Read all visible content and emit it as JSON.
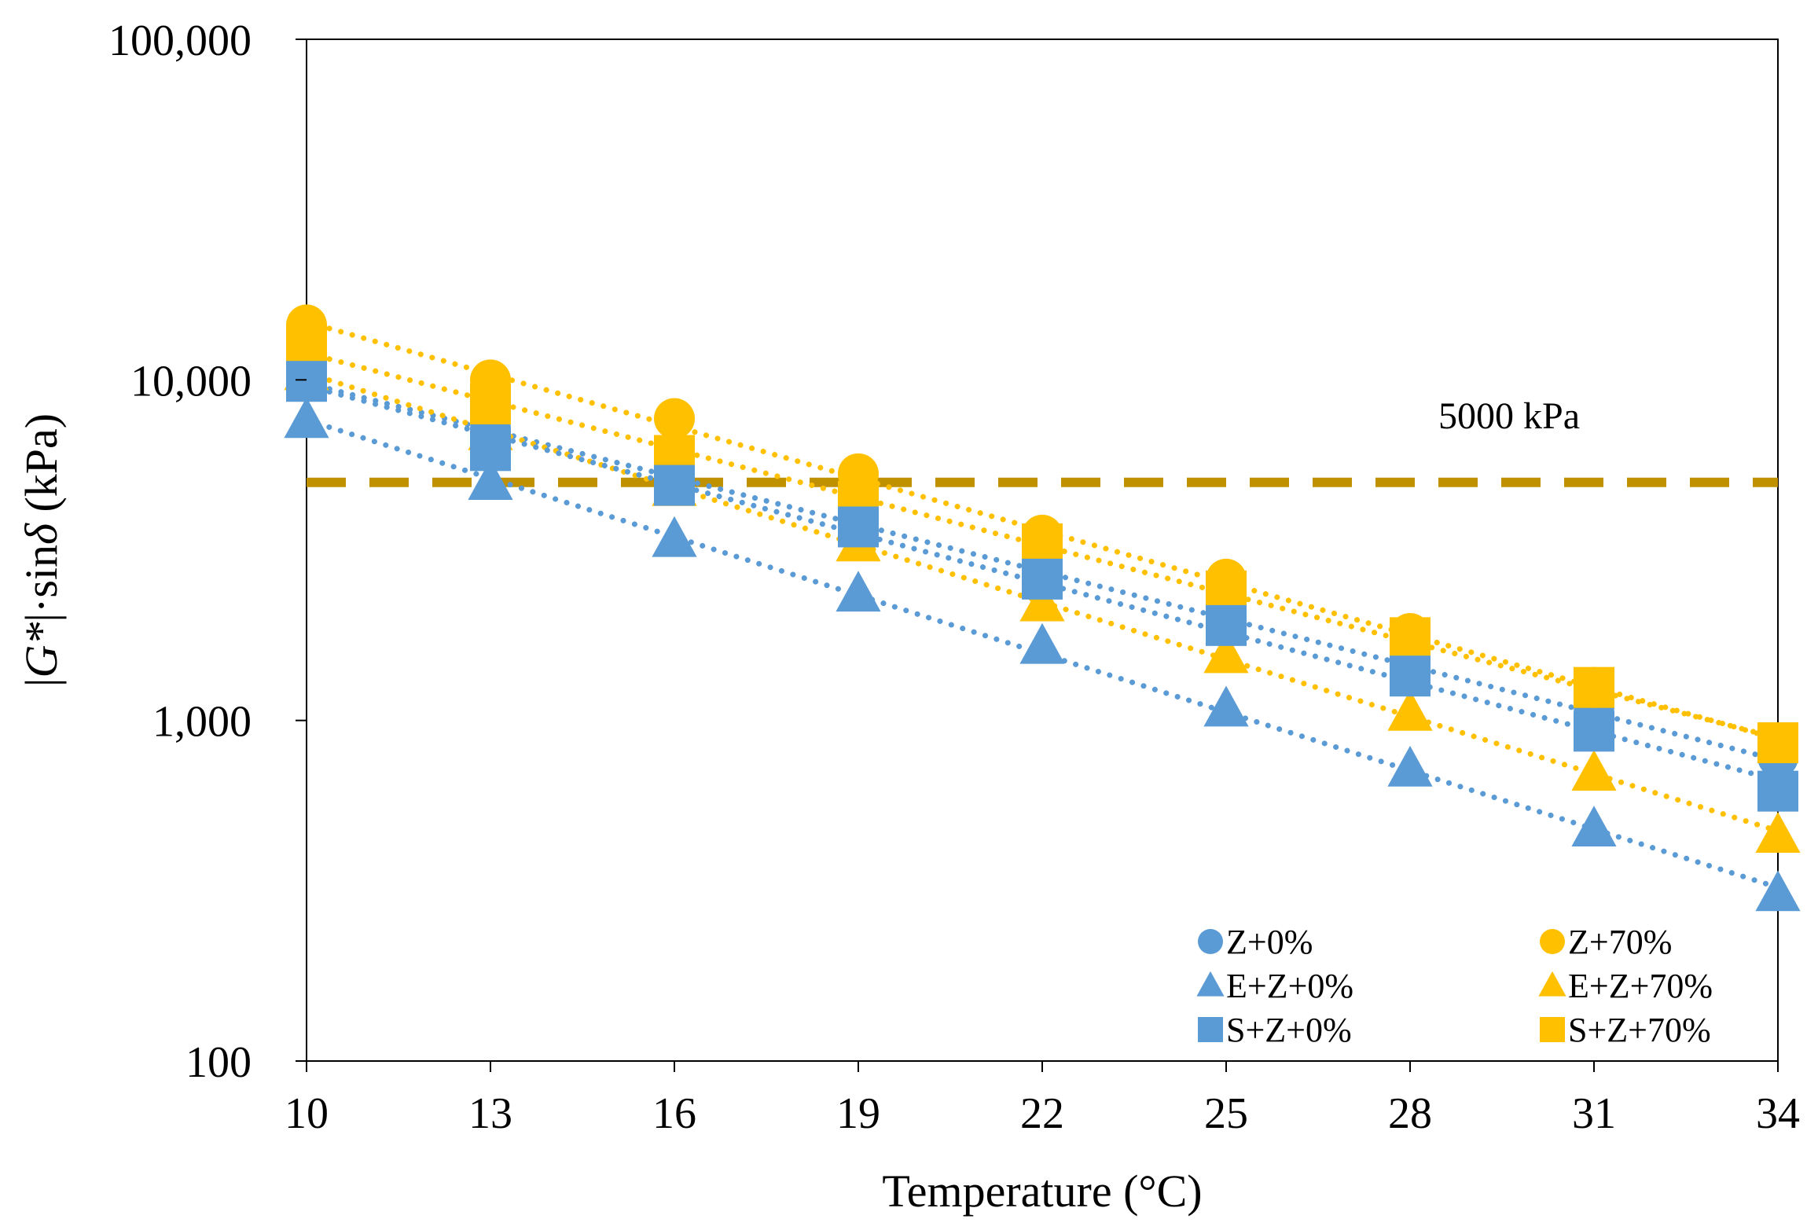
{
  "chart_data": {
    "type": "scatter",
    "xlabel": "Temperature (°C)",
    "ylabel_parts": [
      "|",
      "G*",
      "|·sin",
      "δ",
      " (kPa)"
    ],
    "y_scale": "log",
    "xlim": [
      10,
      34
    ],
    "ylim": [
      100,
      100000
    ],
    "x_ticks": [
      10,
      13,
      16,
      19,
      22,
      25,
      28,
      31,
      34
    ],
    "x_tick_labels": [
      "10",
      "13",
      "16",
      "19",
      "22",
      "25",
      "28",
      "31",
      "34"
    ],
    "y_ticks": [
      100,
      1000,
      10000,
      100000
    ],
    "y_tick_labels": [
      "100",
      "1,000",
      "10,000",
      "100,000"
    ],
    "reference_line": {
      "value": 5000,
      "label": "5000 kPa",
      "color": "#BF9000"
    },
    "legend_position": "bottom-right",
    "series": [
      {
        "name": "Z+0%",
        "marker": "circle",
        "color": "#5B9BD5",
        "x": [
          10,
          13,
          16,
          19,
          22,
          25,
          28,
          31,
          34
        ],
        "y": [
          10000,
          7200,
          5100,
          3800,
          2700,
          1900,
          1400,
          1100,
          780
        ]
      },
      {
        "name": "Z+70%",
        "marker": "circle",
        "color": "#FFC000",
        "x": [
          10,
          13,
          16,
          19,
          22,
          25,
          28,
          31,
          34
        ],
        "y": [
          14500,
          10000,
          7700,
          5300,
          3500,
          2600,
          1800,
          1250,
          860
        ]
      },
      {
        "name": "E+Z+0%",
        "marker": "triangle",
        "color": "#5B9BD5",
        "x": [
          10,
          13,
          16,
          19,
          22,
          25,
          28,
          31,
          34
        ],
        "y": [
          7600,
          5000,
          3400,
          2350,
          1650,
          1080,
          720,
          480,
          310
        ]
      },
      {
        "name": "E+Z+70%",
        "marker": "triangle",
        "color": "#FFC000",
        "x": [
          10,
          13,
          16,
          19,
          22,
          25,
          28,
          31,
          34
        ],
        "y": [
          10500,
          7000,
          4800,
          3300,
          2200,
          1550,
          1050,
          700,
          460
        ]
      },
      {
        "name": "S+Z+0%",
        "marker": "square",
        "color": "#5B9BD5",
        "x": [
          10,
          13,
          16,
          19,
          22,
          25,
          28,
          31,
          34
        ],
        "y": [
          9900,
          6200,
          4900,
          3700,
          2600,
          1900,
          1350,
          930,
          620
        ]
      },
      {
        "name": "S+Z+70%",
        "marker": "square",
        "color": "#FFC000",
        "x": [
          10,
          13,
          16,
          19,
          22,
          25,
          28,
          31,
          34
        ],
        "y": [
          12500,
          8500,
          6000,
          4400,
          3300,
          2400,
          1750,
          1250,
          860
        ]
      }
    ]
  }
}
